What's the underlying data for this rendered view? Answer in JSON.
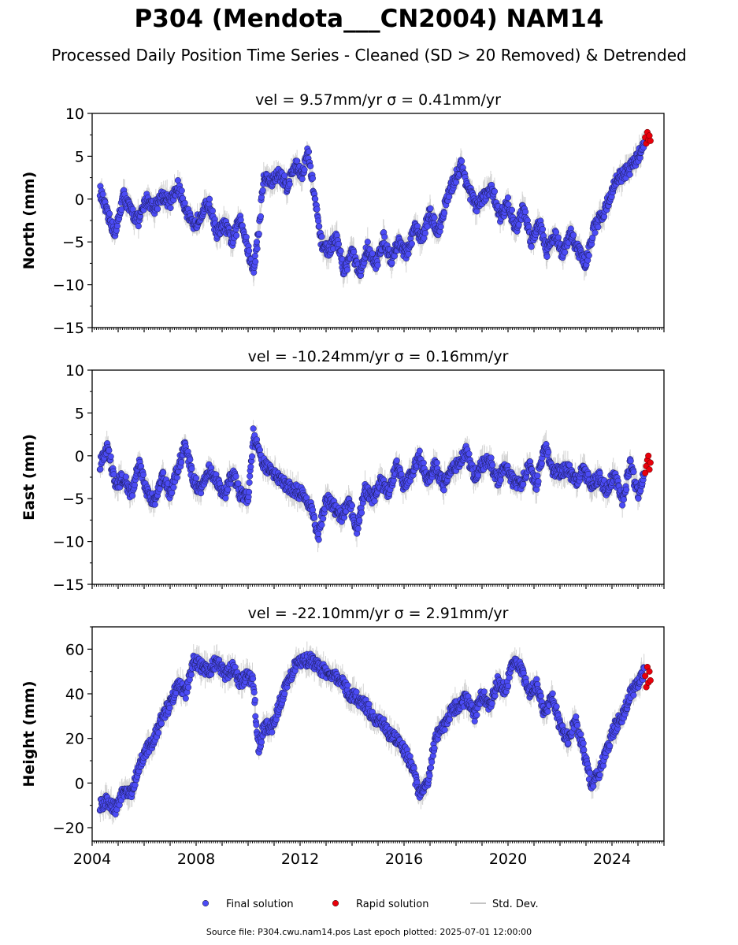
{
  "page": {
    "title": "P304 (Mendota___CN2004) NAM14",
    "subtitle": "Processed Daily Position Time Series - Cleaned (SD > 20 Removed) & Detrended",
    "footer": "Source file: P304.cwu.nam14.pos  Last epoch plotted: 2025-07-01 12:00:00"
  },
  "colors": {
    "final": "#4b4bf5",
    "rapid": "#e8000b",
    "std_dev": "#b0b0b0",
    "axis": "#000000"
  },
  "chart_data": [
    {
      "type": "scatter",
      "title": "vel = 9.57mm/yr   σ = 0.41mm/yr",
      "ylabel": "North (mm)",
      "xlabel": "",
      "xlim": [
        2004.0,
        2026.0
      ],
      "ylim": [
        -15,
        10
      ],
      "yticks": [
        -15,
        -10,
        -5,
        0,
        5,
        10
      ],
      "grid": false,
      "series": [
        {
          "name": "Final solution",
          "x": [
            2004.3,
            2004.6,
            2004.9,
            2005.2,
            2005.5,
            2005.8,
            2006.1,
            2006.4,
            2006.7,
            2007.0,
            2007.3,
            2007.6,
            2007.9,
            2008.2,
            2008.5,
            2008.8,
            2009.1,
            2009.4,
            2009.7,
            2010.0,
            2010.2,
            2010.4,
            2010.6,
            2010.9,
            2011.2,
            2011.5,
            2011.8,
            2012.1,
            2012.3,
            2012.5,
            2012.8,
            2013.1,
            2013.4,
            2013.7,
            2014.0,
            2014.3,
            2014.6,
            2014.9,
            2015.2,
            2015.5,
            2015.8,
            2016.1,
            2016.4,
            2016.7,
            2017.0,
            2017.3,
            2017.6,
            2017.9,
            2018.2,
            2018.5,
            2018.8,
            2019.1,
            2019.4,
            2019.7,
            2020.0,
            2020.3,
            2020.6,
            2020.9,
            2021.2,
            2021.5,
            2021.8,
            2022.1,
            2022.4,
            2022.7,
            2023.0,
            2023.3,
            2023.6,
            2023.9,
            2024.2,
            2024.5,
            2024.8,
            2025.1,
            2025.25
          ],
          "y": [
            1.0,
            -2.0,
            -4.0,
            0.5,
            -1.5,
            -2.5,
            0.0,
            -1.0,
            0.5,
            -0.5,
            1.5,
            -1.0,
            -3.5,
            -1.5,
            -0.5,
            -4.0,
            -3.0,
            -5.0,
            -2.0,
            -6.0,
            -8.5,
            -4.0,
            2.5,
            2.0,
            3.0,
            1.5,
            4.0,
            3.0,
            5.5,
            1.5,
            -5.0,
            -6.0,
            -4.5,
            -8.5,
            -6.0,
            -9.0,
            -5.5,
            -8.0,
            -4.5,
            -7.0,
            -5.0,
            -6.5,
            -3.5,
            -4.5,
            -1.5,
            -4.0,
            -0.5,
            2.0,
            4.0,
            1.0,
            -1.0,
            0.5,
            1.0,
            -2.0,
            -0.5,
            -3.5,
            -1.0,
            -5.0,
            -2.5,
            -6.0,
            -4.0,
            -6.5,
            -4.0,
            -6.0,
            -7.5,
            -3.5,
            -2.0,
            0.0,
            2.5,
            3.0,
            4.0,
            5.5,
            7.0
          ]
        },
        {
          "name": "Rapid solution",
          "x": [
            2025.28,
            2025.32,
            2025.36,
            2025.4,
            2025.44,
            2025.48
          ],
          "y": [
            7.2,
            6.5,
            7.8,
            6.9,
            7.4,
            6.8
          ]
        }
      ]
    },
    {
      "type": "scatter",
      "title": "vel = -10.24mm/yr   σ = 0.16mm/yr",
      "ylabel": "East (mm)",
      "xlabel": "",
      "xlim": [
        2004.0,
        2026.0
      ],
      "ylim": [
        -15,
        10
      ],
      "yticks": [
        -15,
        -10,
        -5,
        0,
        5,
        10
      ],
      "grid": false,
      "series": [
        {
          "name": "Final solution",
          "x": [
            2004.3,
            2004.6,
            2004.9,
            2005.2,
            2005.5,
            2005.8,
            2006.1,
            2006.4,
            2006.7,
            2007.0,
            2007.3,
            2007.6,
            2007.9,
            2008.2,
            2008.5,
            2008.8,
            2009.1,
            2009.4,
            2009.7,
            2010.0,
            2010.2,
            2010.4,
            2010.6,
            2010.9,
            2011.2,
            2011.5,
            2011.8,
            2012.1,
            2012.4,
            2012.7,
            2013.0,
            2013.3,
            2013.6,
            2013.9,
            2014.2,
            2014.5,
            2014.8,
            2015.1,
            2015.4,
            2015.7,
            2016.0,
            2016.3,
            2016.6,
            2016.9,
            2017.2,
            2017.5,
            2017.8,
            2018.1,
            2018.4,
            2018.7,
            2019.0,
            2019.3,
            2019.6,
            2019.9,
            2020.2,
            2020.5,
            2020.8,
            2021.1,
            2021.4,
            2021.7,
            2022.0,
            2022.3,
            2022.6,
            2022.9,
            2023.2,
            2023.5,
            2023.8,
            2024.1,
            2024.4,
            2024.7,
            2025.0,
            2025.25
          ],
          "y": [
            -1.0,
            1.0,
            -3.5,
            -2.5,
            -4.5,
            -1.0,
            -4.0,
            -5.5,
            -2.0,
            -4.5,
            -1.5,
            1.5,
            -3.0,
            -4.0,
            -1.5,
            -3.0,
            -4.5,
            -2.0,
            -4.5,
            -5.0,
            2.5,
            0.5,
            -1.0,
            -2.0,
            -2.5,
            -3.5,
            -4.0,
            -4.5,
            -6.0,
            -9.5,
            -5.0,
            -6.0,
            -7.0,
            -5.5,
            -8.5,
            -4.0,
            -5.0,
            -3.0,
            -4.5,
            -1.0,
            -3.5,
            -2.0,
            0.0,
            -3.0,
            -1.0,
            -3.5,
            -1.5,
            -1.0,
            0.5,
            -2.5,
            -1.0,
            -0.5,
            -3.0,
            -1.0,
            -3.0,
            -3.5,
            -1.0,
            -3.5,
            1.5,
            -1.5,
            -2.0,
            -1.5,
            -3.0,
            -1.5,
            -3.5,
            -2.5,
            -4.0,
            -2.0,
            -5.5,
            -1.0,
            -4.5,
            -2.0
          ]
        },
        {
          "name": "Rapid solution",
          "x": [
            2025.28,
            2025.32,
            2025.36,
            2025.4,
            2025.44,
            2025.48
          ],
          "y": [
            -2.0,
            -1.2,
            -0.5,
            0.0,
            -1.6,
            -0.8
          ]
        }
      ]
    },
    {
      "type": "scatter",
      "title": "vel = -22.10mm/yr   σ = 2.91mm/yr",
      "ylabel": "Height (mm)",
      "xlabel": "",
      "xlim": [
        2004.0,
        2026.0
      ],
      "ylim": [
        -26,
        70
      ],
      "yticks": [
        -20,
        0,
        20,
        40,
        60
      ],
      "xticks": [
        2004,
        2008,
        2012,
        2016,
        2020,
        2024
      ],
      "grid": false,
      "series": [
        {
          "name": "Final solution",
          "x": [
            2004.3,
            2004.6,
            2004.9,
            2005.2,
            2005.5,
            2005.8,
            2006.1,
            2006.4,
            2006.7,
            2007.0,
            2007.3,
            2007.6,
            2007.9,
            2008.2,
            2008.5,
            2008.8,
            2009.1,
            2009.4,
            2009.7,
            2010.0,
            2010.2,
            2010.4,
            2010.6,
            2010.9,
            2011.2,
            2011.5,
            2011.8,
            2012.1,
            2012.4,
            2012.7,
            2013.0,
            2013.3,
            2013.6,
            2013.9,
            2014.2,
            2014.5,
            2014.8,
            2015.1,
            2015.4,
            2015.7,
            2016.0,
            2016.3,
            2016.6,
            2016.9,
            2017.2,
            2017.5,
            2017.8,
            2018.1,
            2018.4,
            2018.7,
            2019.0,
            2019.3,
            2019.6,
            2019.9,
            2020.2,
            2020.5,
            2020.8,
            2021.1,
            2021.4,
            2021.7,
            2022.0,
            2022.3,
            2022.6,
            2022.9,
            2023.2,
            2023.5,
            2023.8,
            2024.1,
            2024.4,
            2024.7,
            2025.0,
            2025.25
          ],
          "y": [
            -10.0,
            -8.0,
            -12.0,
            -4.0,
            -5.0,
            8.0,
            15.0,
            20.0,
            30.0,
            35.0,
            45.0,
            40.0,
            55.0,
            52.0,
            50.0,
            55.0,
            48.0,
            52.0,
            45.0,
            48.0,
            45.0,
            15.0,
            25.0,
            25.0,
            35.0,
            45.0,
            52.0,
            55.0,
            55.0,
            52.0,
            50.0,
            48.0,
            45.0,
            40.0,
            38.0,
            35.0,
            30.0,
            28.0,
            22.0,
            20.0,
            15.0,
            8.0,
            -5.0,
            0.0,
            20.0,
            25.0,
            32.0,
            35.0,
            38.0,
            30.0,
            40.0,
            35.0,
            45.0,
            42.0,
            55.0,
            52.0,
            40.0,
            45.0,
            30.0,
            40.0,
            25.0,
            20.0,
            28.0,
            15.0,
            0.0,
            5.0,
            15.0,
            25.0,
            30.0,
            40.0,
            45.0,
            50.0
          ]
        },
        {
          "name": "Rapid solution",
          "x": [
            2025.28,
            2025.32,
            2025.36,
            2025.4,
            2025.44,
            2025.48
          ],
          "y": [
            48.0,
            43.0,
            52.0,
            45.0,
            50.0,
            46.0
          ]
        }
      ]
    }
  ],
  "legend": {
    "placement": "bottom",
    "items": [
      {
        "label": "Final solution",
        "kind": "marker",
        "color": "#4b4bf5"
      },
      {
        "label": "Rapid solution",
        "kind": "marker",
        "color": "#e8000b"
      },
      {
        "label": "Std. Dev.",
        "kind": "line",
        "color": "#b0b0b0"
      }
    ]
  }
}
